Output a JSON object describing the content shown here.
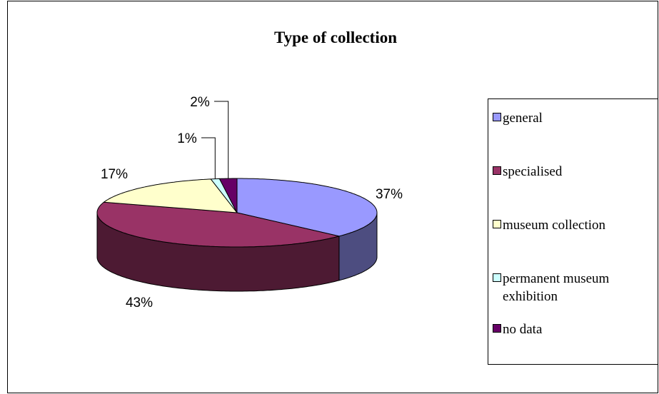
{
  "chart_data": {
    "type": "pie3d",
    "title": "Type of collection",
    "categories": [
      "general",
      "specialised",
      "museum collection",
      "permanent museum exhibition",
      "no data"
    ],
    "values": [
      37,
      43,
      17,
      1,
      2
    ],
    "value_labels": [
      "37%",
      "43%",
      "17%",
      "1%",
      "2%"
    ],
    "colors": [
      "#9999ff",
      "#993366",
      "#ffffcc",
      "#ccffff",
      "#660066"
    ],
    "legend": "right"
  }
}
